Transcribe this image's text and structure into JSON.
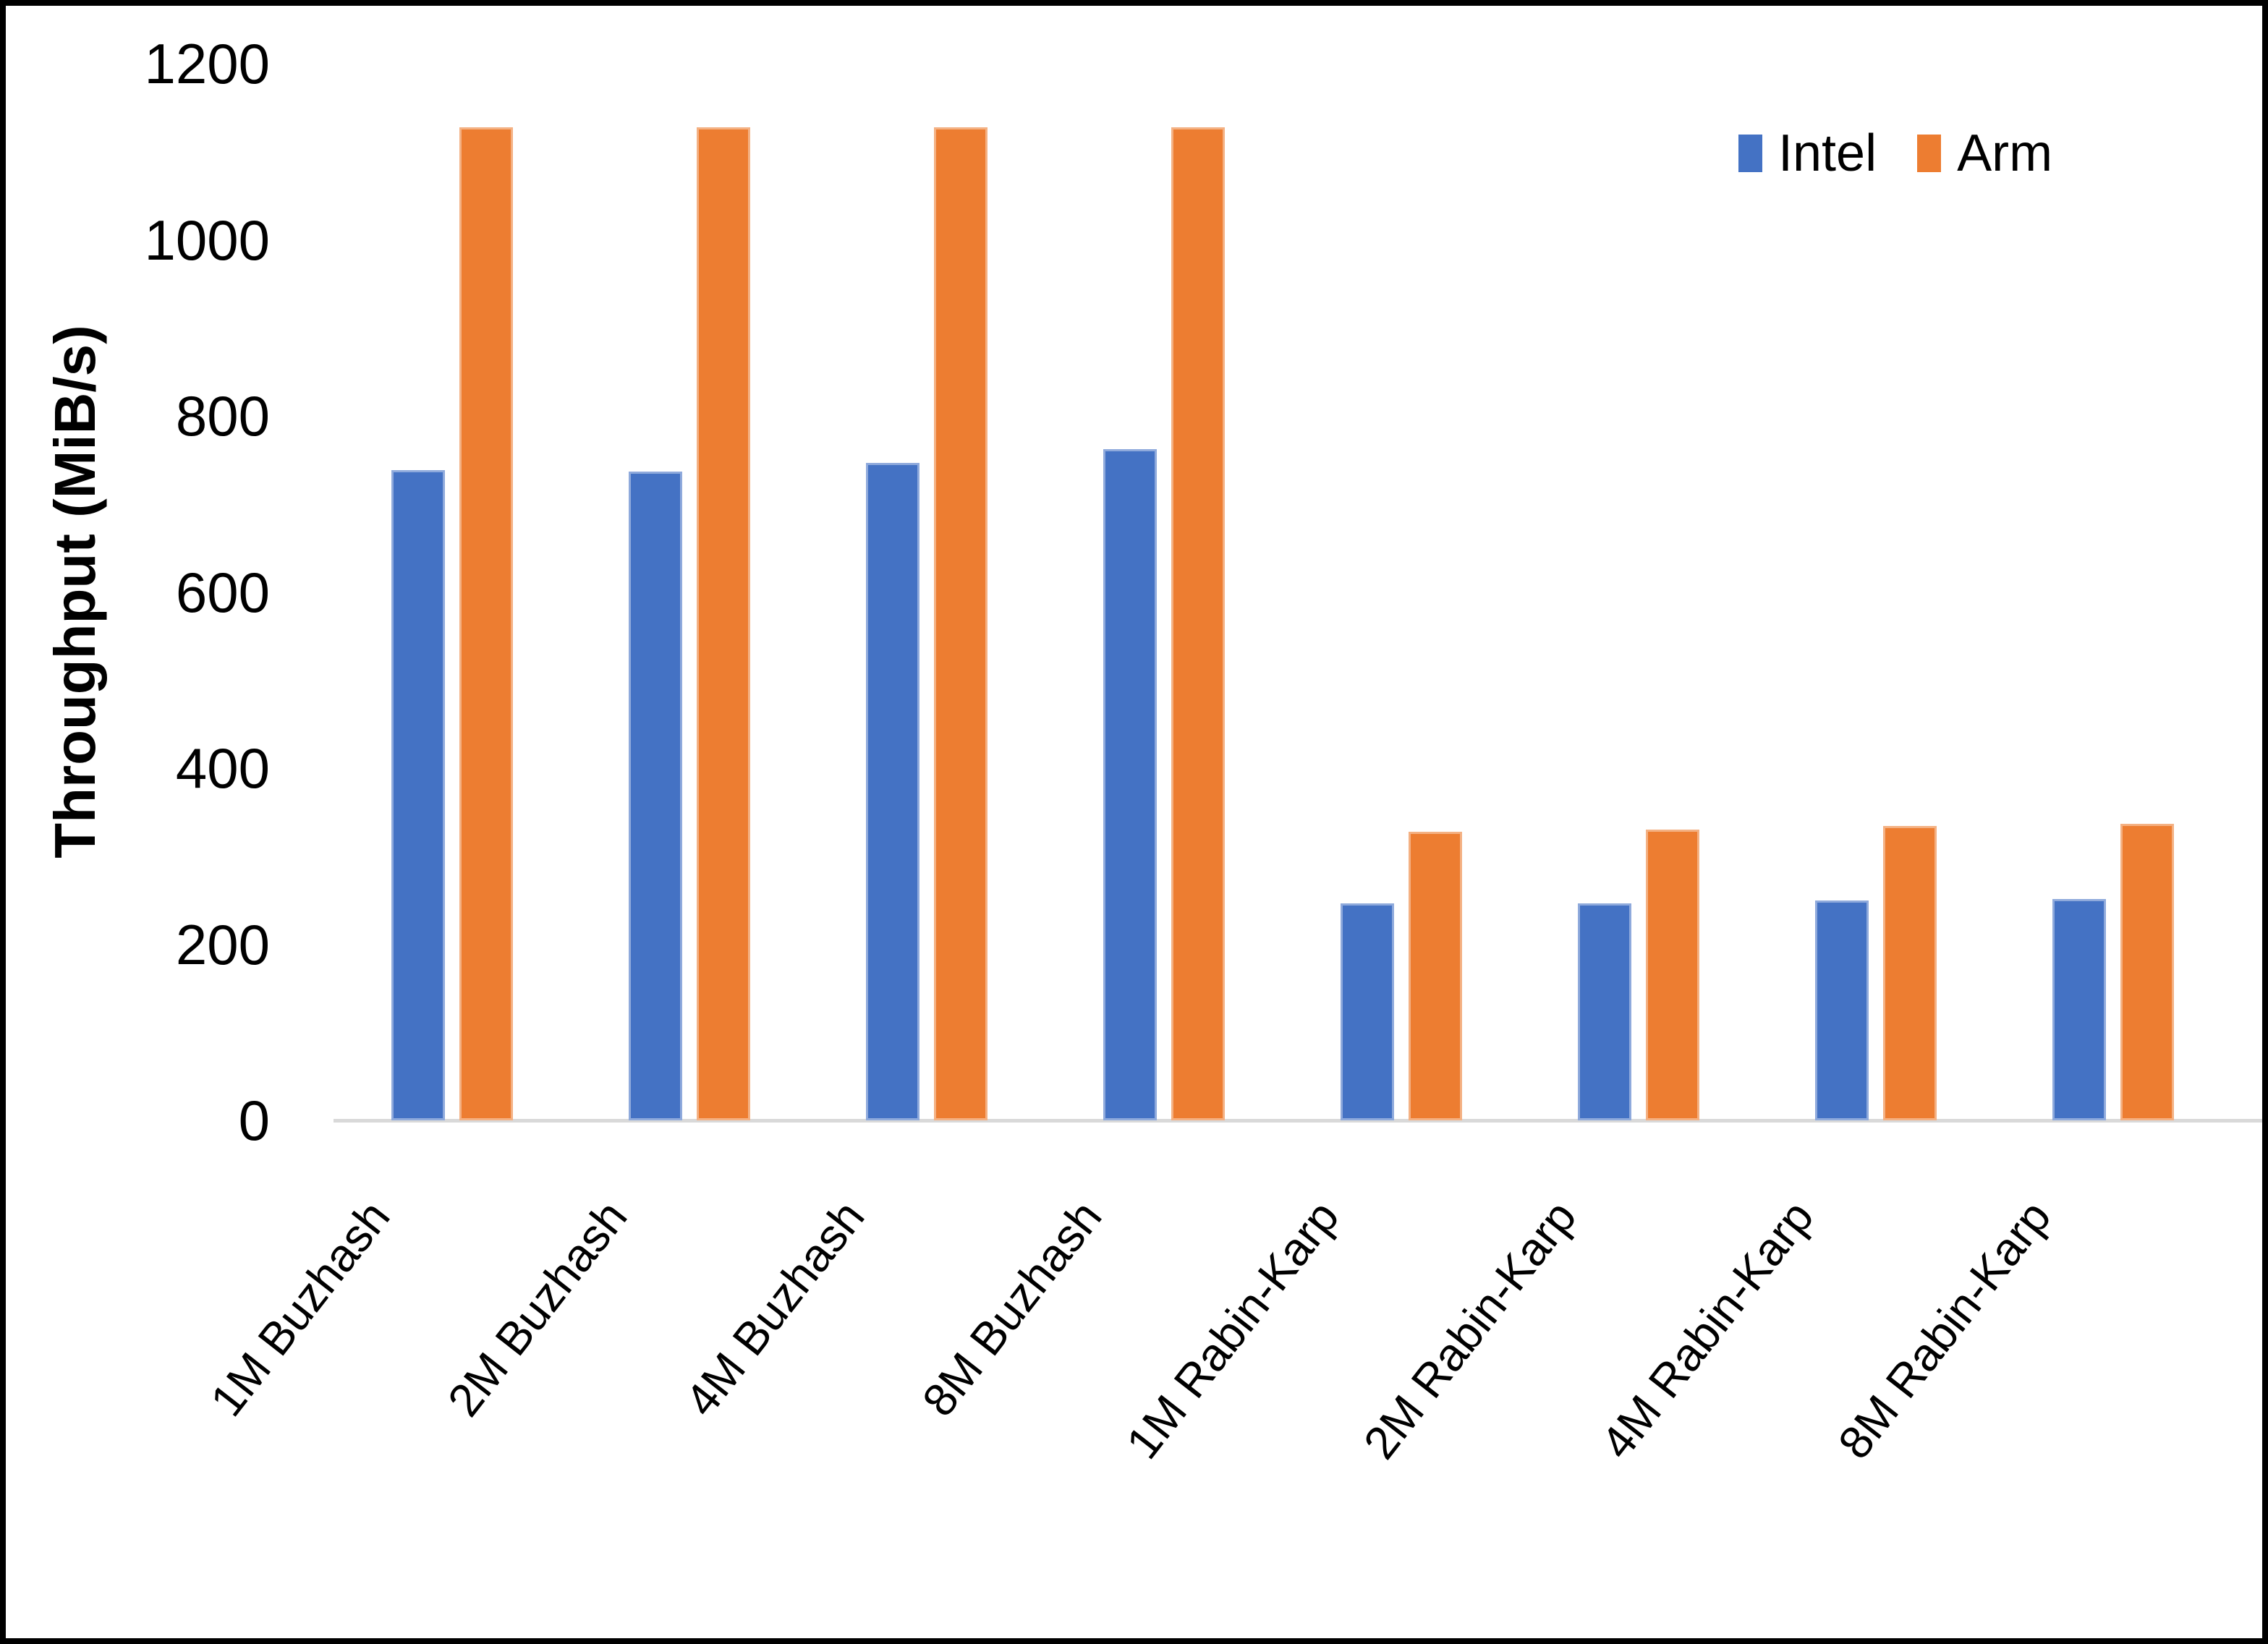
{
  "chart_data": {
    "type": "bar",
    "title": "",
    "categories": [
      "1M Buzhash",
      "2M Buzhash",
      "4M Buzhash",
      "8M Buzhash",
      "1M Rabin-Karp",
      "2M Rabin-Karp",
      "4M Rabin-Karp",
      "8M Rabin-Karp"
    ],
    "series": [
      {
        "name": "Intel",
        "color": "#4472C4",
        "edge_color": "#8FAADC",
        "values": [
          738,
          737,
          747,
          762,
          246,
          246,
          250,
          251
        ]
      },
      {
        "name": "Arm",
        "color": "#ED7D31",
        "edge_color": "#F4B183",
        "values": [
          1128,
          1128,
          1128,
          1128,
          328,
          330,
          334,
          337
        ]
      }
    ],
    "xlabel": "",
    "ylabel": "Throughput (MiB/s)",
    "ylim": [
      0,
      1200
    ],
    "y_ticks": [
      0,
      200,
      400,
      600,
      800,
      1000,
      1200
    ],
    "grid": false,
    "legend_position": "top-right"
  },
  "axis": {
    "line_color": "#D9D9D9",
    "text_color": "#000000"
  },
  "frame_color": "#000000"
}
